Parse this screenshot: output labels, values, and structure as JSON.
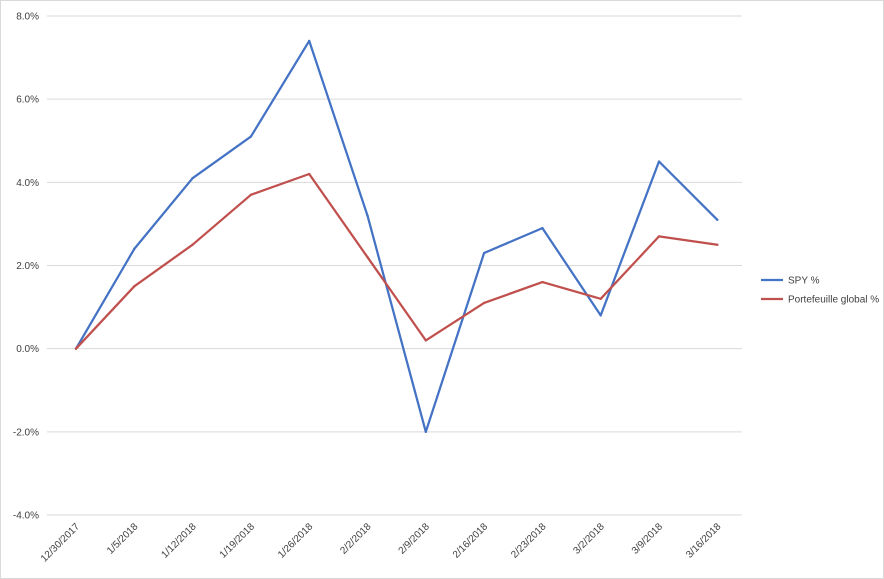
{
  "chart_data": {
    "type": "line",
    "title": "",
    "xlabel": "",
    "ylabel": "",
    "categories": [
      "12/30/2017",
      "1/5/2018",
      "1/12/2018",
      "1/19/2018",
      "1/26/2018",
      "2/2/2018",
      "2/9/2018",
      "2/16/2018",
      "2/23/2018",
      "3/2/2018",
      "3/9/2018",
      "3/16/2018"
    ],
    "series": [
      {
        "name": "SPY %",
        "color": "#4472c4",
        "values": [
          0.0,
          2.4,
          4.1,
          5.1,
          7.4,
          3.2,
          -2.0,
          2.3,
          2.9,
          0.8,
          4.5,
          3.1
        ]
      },
      {
        "name": "Portefeuille global %",
        "color": "#c0504d",
        "values": [
          0.0,
          1.5,
          2.5,
          3.7,
          4.2,
          2.2,
          0.2,
          1.1,
          1.6,
          1.2,
          2.7,
          2.5
        ]
      }
    ],
    "ylim": [
      -4,
      8
    ],
    "yticks": [
      8,
      6,
      4,
      2,
      0,
      -2,
      -4
    ],
    "ytick_labels": [
      "8.0%",
      "6.0%",
      "4.0%",
      "2.0%",
      "0.0%",
      "-2.0%",
      "-4.0%"
    ],
    "grid": true,
    "legend_position": "right"
  }
}
